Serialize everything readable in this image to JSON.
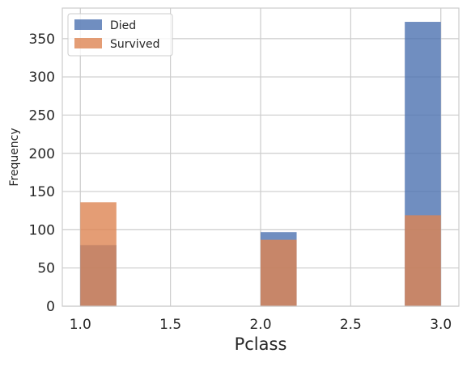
{
  "chart_data": {
    "type": "bar",
    "title": "",
    "xlabel": "Pclass",
    "ylabel": "Frequency",
    "xlim": [
      0.9,
      3.1
    ],
    "ylim": [
      0,
      390
    ],
    "x_ticks": [
      1.0,
      1.5,
      2.0,
      2.5,
      3.0
    ],
    "x_tick_labels": [
      "1.0",
      "1.5",
      "2.0",
      "2.5",
      "3.0"
    ],
    "y_ticks": [
      0,
      50,
      100,
      150,
      200,
      250,
      300,
      350
    ],
    "y_tick_labels": [
      "0",
      "50",
      "100",
      "150",
      "200",
      "250",
      "300",
      "350"
    ],
    "grid": true,
    "legend_position": "top-left",
    "bins": [
      [
        1.0,
        1.2
      ],
      [
        2.0,
        2.2
      ],
      [
        2.8,
        3.0
      ]
    ],
    "series": [
      {
        "name": "Died",
        "color": "#4c72b0",
        "values": [
          80,
          97,
          372
        ]
      },
      {
        "name": "Survived",
        "color": "#dd8452",
        "values": [
          136,
          87,
          119
        ]
      }
    ]
  }
}
